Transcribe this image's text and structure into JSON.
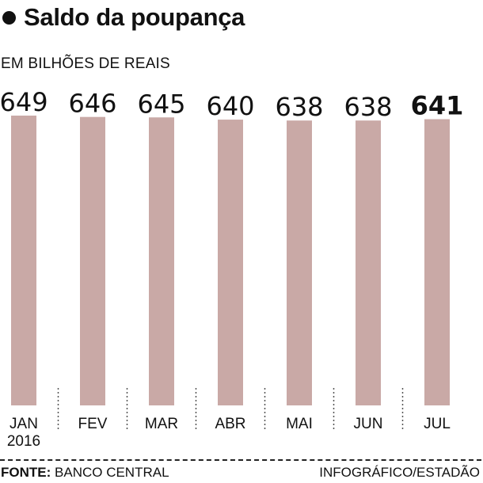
{
  "title": "Saldo da poupança",
  "subtitle": "EM BILHÕES DE REAIS",
  "footer": {
    "source_label": "FONTE:",
    "source_value": "BANCO CENTRAL",
    "credit": "INFOGRÁFICO/ESTADÃO"
  },
  "colors": {
    "bar": "#c9a9a6",
    "text": "#111111",
    "divider": "#555555"
  },
  "chart_data": {
    "type": "bar",
    "categories": [
      "JAN",
      "FEV",
      "MAR",
      "ABR",
      "MAI",
      "JUN",
      "JUL"
    ],
    "category_sublabels": [
      "2016",
      "",
      "",
      "",
      "",
      "",
      ""
    ],
    "values": [
      649,
      646,
      645,
      640,
      638,
      638,
      641
    ],
    "value_labels": [
      "649",
      "646",
      "645",
      "640",
      "638",
      "638",
      "641"
    ],
    "highlight_index": 6,
    "ylim": [
      0,
      649
    ],
    "title": "Saldo da poupança",
    "xlabel": "",
    "ylabel": "EM BILHÕES DE REAIS",
    "grid": false,
    "legend": "none"
  }
}
